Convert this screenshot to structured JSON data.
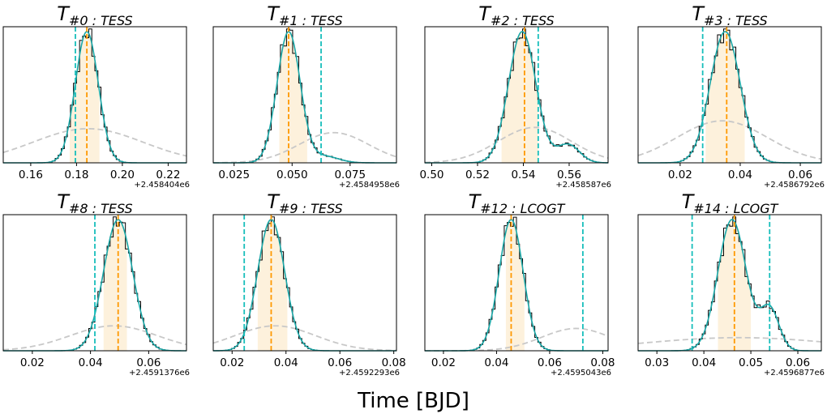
{
  "figure": {
    "xlabel": "Time [BJD]"
  },
  "colors": {
    "histogram": "#000000",
    "kde": "#1aa7a7",
    "median": "#ff9900",
    "credible_band": "#fdf1dc",
    "reference": "#17bebb",
    "prior": "#c8c8c8"
  },
  "chart_data": [
    {
      "type": "histogram",
      "title_main": "T",
      "title_sub": "#0 : TESS",
      "offset": "+2.458404e6",
      "xlim": [
        0.148,
        0.228
      ],
      "xticks": [
        0.16,
        0.18,
        0.2,
        0.22
      ],
      "xtick_labels": [
        "0.16",
        "0.18",
        "0.20",
        "0.22"
      ],
      "median": 0.1845,
      "band": [
        0.177,
        0.19
      ],
      "reference": 0.1795,
      "components": [
        {
          "mu": 0.1845,
          "sigma": 0.005,
          "w": 1
        }
      ],
      "prior": {
        "mu": 0.185,
        "sigma": 0.024,
        "h": 0.26
      }
    },
    {
      "type": "histogram",
      "title_main": "T",
      "title_sub": "#1 : TESS",
      "offset": "+2.4584958e6",
      "xlim": [
        0.016,
        0.095
      ],
      "xticks": [
        0.025,
        0.05,
        0.075
      ],
      "xtick_labels": [
        "0.025",
        "0.050",
        "0.075"
      ],
      "median": 0.0485,
      "band": [
        0.0445,
        0.0565
      ],
      "reference": 0.0625,
      "components": [
        {
          "mu": 0.0485,
          "sigma": 0.005,
          "w": 1
        },
        {
          "mu": 0.064,
          "sigma": 0.006,
          "w": 0.05
        }
      ],
      "prior": {
        "mu": 0.068,
        "sigma": 0.015,
        "h": 0.23
      }
    },
    {
      "type": "histogram",
      "title_main": "T",
      "title_sub": "#2 : TESS",
      "offset": "+2.458587e6",
      "xlim": [
        0.497,
        0.577
      ],
      "xticks": [
        0.5,
        0.52,
        0.54,
        0.56
      ],
      "xtick_labels": [
        "0.50",
        "0.52",
        "0.54",
        "0.56"
      ],
      "median": 0.5405,
      "band": [
        0.5305,
        0.5465
      ],
      "reference": 0.5465,
      "components": [
        {
          "mu": 0.5395,
          "sigma": 0.006,
          "w": 1
        },
        {
          "mu": 0.5595,
          "sigma": 0.005,
          "w": 0.14
        }
      ],
      "prior": {
        "mu": 0.545,
        "sigma": 0.016,
        "h": 0.27
      }
    },
    {
      "type": "histogram",
      "title_main": "T",
      "title_sub": "#3 : TESS",
      "offset": "+2.4586792e6",
      "xlim": [
        0.006,
        0.067
      ],
      "xticks": [
        0.02,
        0.04,
        0.06
      ],
      "xtick_labels": [
        "0.02",
        "0.04",
        "0.06"
      ],
      "median": 0.0355,
      "band": [
        0.0285,
        0.0415
      ],
      "reference": 0.0275,
      "components": [
        {
          "mu": 0.035,
          "sigma": 0.005,
          "w": 1
        }
      ],
      "prior": {
        "mu": 0.034,
        "sigma": 0.015,
        "h": 0.32
      }
    },
    {
      "type": "histogram",
      "title_main": "T",
      "title_sub": "#8 : TESS",
      "offset": "+2.4591376e6",
      "xlim": [
        0.01,
        0.073
      ],
      "xticks": [
        0.02,
        0.04,
        0.06
      ],
      "xtick_labels": [
        "0.02",
        "0.04",
        "0.06"
      ],
      "median": 0.0495,
      "band": [
        0.0445,
        0.0525
      ],
      "reference": 0.0415,
      "components": [
        {
          "mu": 0.0495,
          "sigma": 0.005,
          "w": 1
        }
      ],
      "prior": {
        "mu": 0.048,
        "sigma": 0.015,
        "h": 0.19
      }
    },
    {
      "type": "histogram",
      "title_main": "T",
      "title_sub": "#9 : TESS",
      "offset": "+2.4592293e6",
      "xlim": [
        0.013,
        0.081
      ],
      "xticks": [
        0.02,
        0.04,
        0.06,
        0.08
      ],
      "xtick_labels": [
        "0.02",
        "0.04",
        "0.06",
        "0.08"
      ],
      "median": 0.0345,
      "band": [
        0.0295,
        0.0405
      ],
      "reference": 0.0245,
      "components": [
        {
          "mu": 0.0345,
          "sigma": 0.005,
          "w": 1
        }
      ],
      "prior": {
        "mu": 0.036,
        "sigma": 0.015,
        "h": 0.19
      }
    },
    {
      "type": "histogram",
      "title_main": "T",
      "title_sub": "#12 : LCOGT",
      "offset": "+2.4595043e6",
      "xlim": [
        0.013,
        0.082
      ],
      "xticks": [
        0.02,
        0.04,
        0.06,
        0.08
      ],
      "xtick_labels": [
        "0.02",
        "0.04",
        "0.06",
        "0.08"
      ],
      "median": 0.0455,
      "band": [
        0.0435,
        0.0505
      ],
      "reference": 0.0725,
      "components": [
        {
          "mu": 0.0455,
          "sigma": 0.0045,
          "w": 1
        }
      ],
      "prior": {
        "mu": 0.07,
        "sigma": 0.013,
        "h": 0.17
      }
    },
    {
      "type": "histogram",
      "title_main": "T",
      "title_sub": "#14 : LCOGT",
      "offset": "+2.4596877e6",
      "xlim": [
        0.026,
        0.065
      ],
      "xticks": [
        0.03,
        0.04,
        0.05,
        0.06
      ],
      "xtick_labels": [
        "0.03",
        "0.04",
        "0.05",
        "0.06"
      ],
      "median": 0.0465,
      "band": [
        0.043,
        0.05
      ],
      "reference": 0.0375,
      "reference2": 0.054,
      "components": [
        {
          "mu": 0.046,
          "sigma": 0.003,
          "w": 1
        },
        {
          "mu": 0.054,
          "sigma": 0.002,
          "w": 0.32
        }
      ],
      "prior": {
        "mu": 0.0475,
        "sigma": 0.02,
        "h": 0.1
      }
    }
  ]
}
